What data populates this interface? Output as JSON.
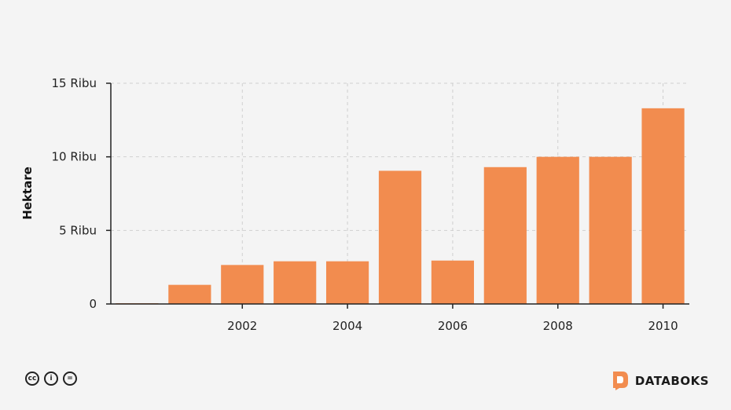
{
  "chart_data": {
    "type": "bar",
    "categories": [
      "2000",
      "2001",
      "2002",
      "2003",
      "2004",
      "2005",
      "2006",
      "2007",
      "2008",
      "2009",
      "2010"
    ],
    "values": [
      50,
      1300,
      2650,
      2900,
      2900,
      9050,
      2950,
      9300,
      10000,
      10000,
      13300
    ],
    "xticks": [
      "2002",
      "2004",
      "2006",
      "2008",
      "2010"
    ],
    "yticks": [
      {
        "value": 0,
        "label": "0"
      },
      {
        "value": 5000,
        "label": "5 Ribu"
      },
      {
        "value": 10000,
        "label": "10 Ribu"
      },
      {
        "value": 15000,
        "label": "15 Ribu"
      }
    ],
    "ylabel": "Hektare",
    "ylim": [
      0,
      15000
    ],
    "grid": true,
    "bar_color": "#f28c4f"
  },
  "footer": {
    "brand": "DATABOKS",
    "license_icons": [
      "cc-icon",
      "by-icon",
      "nd-icon"
    ],
    "license_glyphs": [
      "cc",
      "i",
      "="
    ],
    "brand_color": "#f28c4f"
  }
}
